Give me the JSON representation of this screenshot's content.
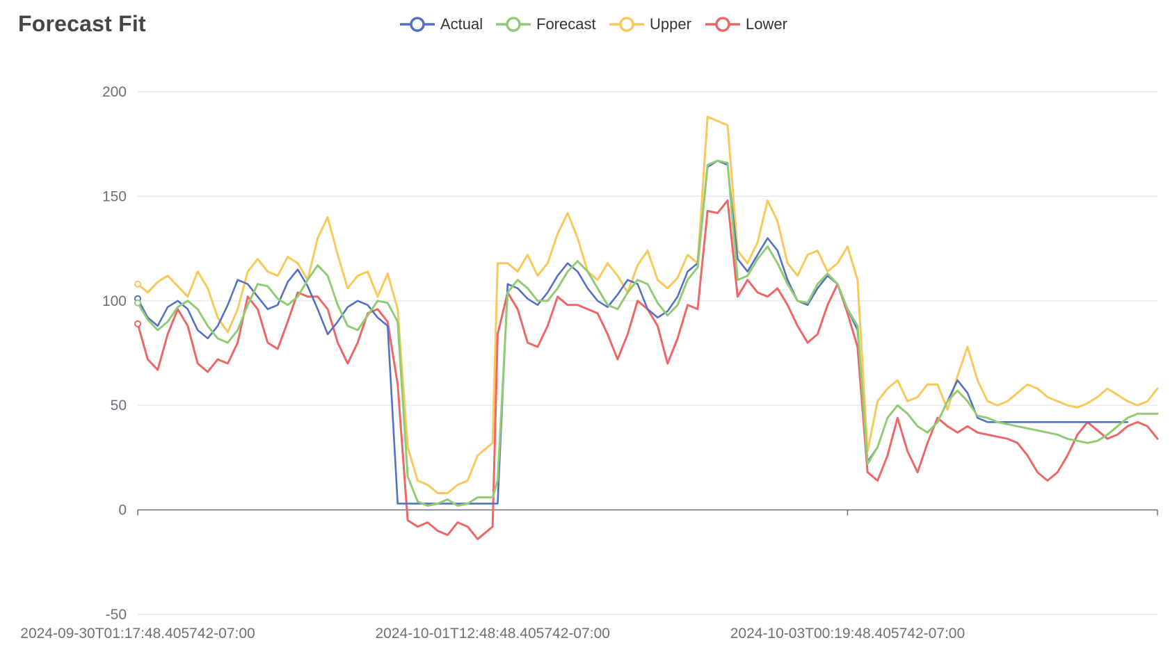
{
  "chart_data": {
    "type": "line",
    "title": "Forecast Fit",
    "legend": {
      "position": "top-center",
      "items": [
        "Actual",
        "Forecast",
        "Upper",
        "Lower"
      ]
    },
    "colors": {
      "Actual": "#5470c6",
      "Forecast": "#91cc75",
      "Upper": "#fac858",
      "Lower": "#ee6666",
      "grid": "#e0e6f1",
      "axis": "#6e7079"
    },
    "ylim": [
      -50,
      200
    ],
    "y_ticks": [
      "200",
      "150",
      "100",
      "50",
      "0",
      "-50"
    ],
    "x_tick_labels": [
      "2024-09-30T01:17:48.405742-07:00",
      "2024-10-01T12:48:48.405742-07:00",
      "2024-10-03T00:19:48.405742-07:00"
    ],
    "x_tick_hours": [
      0,
      35.5,
      71
    ],
    "x_range_hours": [
      0,
      102
    ],
    "grid": true,
    "series": [
      {
        "name": "Actual",
        "x": [
          0,
          1,
          2,
          3,
          4,
          5,
          6,
          7,
          8,
          9,
          10,
          11,
          12,
          13,
          14,
          15,
          16,
          17,
          18,
          19,
          20,
          21,
          22,
          23,
          24,
          25,
          26,
          27,
          28,
          29,
          30,
          31,
          32,
          33,
          34,
          35,
          35.5,
          36,
          37,
          38,
          39,
          40,
          41,
          42,
          43,
          44,
          45,
          46,
          47,
          48,
          49,
          50,
          51,
          52,
          53,
          54,
          55,
          56,
          57,
          58,
          59,
          60,
          61,
          62,
          63,
          64,
          65,
          66,
          67,
          68,
          69,
          70,
          71,
          72,
          73,
          74,
          75,
          76,
          77,
          78,
          79,
          80,
          81,
          82,
          83,
          84,
          85,
          86,
          87,
          88,
          89,
          90,
          91,
          92,
          93,
          94,
          95,
          96,
          97,
          98,
          99
        ],
        "y": [
          101,
          92,
          88,
          97,
          100,
          96,
          86,
          82,
          88,
          98,
          110,
          108,
          102,
          96,
          98,
          109,
          115,
          107,
          96,
          84,
          90,
          97,
          100,
          98,
          92,
          88,
          3,
          3,
          3,
          3,
          3,
          3,
          3,
          3,
          3,
          3,
          3,
          3,
          108,
          106,
          101,
          98,
          104,
          112,
          118,
          114,
          106,
          100,
          97,
          103,
          110,
          108,
          96,
          92,
          95,
          102,
          114,
          118,
          164,
          167,
          165,
          120,
          114,
          122,
          130,
          124,
          110,
          100,
          98,
          106,
          112,
          108,
          96,
          86,
          23,
          30,
          44,
          50,
          46,
          40,
          37,
          42,
          52,
          62,
          56,
          44,
          42,
          42,
          42,
          42,
          42,
          42,
          42,
          42,
          42,
          42,
          42,
          42,
          42,
          42,
          42
        ]
      },
      {
        "name": "Forecast",
        "x": [
          0,
          1,
          2,
          3,
          4,
          5,
          6,
          7,
          8,
          9,
          10,
          11,
          12,
          13,
          14,
          15,
          16,
          17,
          18,
          19,
          20,
          21,
          22,
          23,
          24,
          25,
          26,
          27,
          28,
          29,
          30,
          31,
          32,
          33,
          34,
          35,
          35.5,
          36,
          37,
          38,
          39,
          40,
          41,
          42,
          43,
          44,
          45,
          46,
          47,
          48,
          49,
          50,
          51,
          52,
          53,
          54,
          55,
          56,
          57,
          58,
          59,
          60,
          61,
          62,
          63,
          64,
          65,
          66,
          67,
          68,
          69,
          70,
          71,
          72,
          73,
          74,
          75,
          76,
          77,
          78,
          79,
          80,
          81,
          82,
          83,
          84,
          85,
          86,
          87,
          88,
          89,
          90,
          91,
          92,
          93,
          94,
          95,
          96,
          97,
          98,
          99,
          100,
          101,
          102
        ],
        "y": [
          99,
          91,
          86,
          90,
          97,
          100,
          96,
          88,
          82,
          80,
          86,
          98,
          108,
          107,
          101,
          98,
          102,
          110,
          117,
          112,
          98,
          88,
          86,
          93,
          100,
          99,
          90,
          16,
          4,
          2,
          3,
          5,
          2,
          3,
          6,
          6,
          6,
          14,
          104,
          110,
          106,
          100,
          100,
          106,
          114,
          119,
          114,
          106,
          98,
          96,
          104,
          110,
          108,
          99,
          93,
          98,
          110,
          116,
          165,
          167,
          166,
          110,
          112,
          120,
          126,
          118,
          108,
          100,
          99,
          108,
          113,
          108,
          96,
          88,
          22,
          30,
          44,
          50,
          46,
          40,
          37,
          42,
          52,
          57,
          52,
          45,
          44,
          42,
          41,
          40,
          39,
          38,
          37,
          36,
          34,
          33,
          32,
          33,
          36,
          40,
          44,
          46,
          46,
          46
        ]
      },
      {
        "name": "Upper",
        "x": [
          0,
          1,
          2,
          3,
          4,
          5,
          6,
          7,
          8,
          9,
          10,
          11,
          12,
          13,
          14,
          15,
          16,
          17,
          18,
          19,
          20,
          21,
          22,
          23,
          24,
          25,
          26,
          27,
          28,
          29,
          30,
          31,
          32,
          33,
          34,
          35,
          35.5,
          36,
          37,
          38,
          39,
          40,
          41,
          42,
          43,
          44,
          45,
          46,
          47,
          48,
          49,
          50,
          51,
          52,
          53,
          54,
          55,
          56,
          57,
          58,
          59,
          60,
          61,
          62,
          63,
          64,
          65,
          66,
          67,
          68,
          69,
          70,
          71,
          72,
          73,
          74,
          75,
          76,
          77,
          78,
          79,
          80,
          81,
          82,
          83,
          84,
          85,
          86,
          87,
          88,
          89,
          90,
          91,
          92,
          93,
          94,
          95,
          96,
          97,
          98,
          99,
          100,
          101,
          102
        ],
        "y": [
          108,
          104,
          109,
          112,
          107,
          102,
          114,
          106,
          92,
          85,
          96,
          114,
          120,
          114,
          112,
          121,
          118,
          110,
          130,
          140,
          122,
          106,
          112,
          114,
          102,
          113,
          96,
          30,
          14,
          12,
          8,
          8,
          12,
          14,
          26,
          30,
          32,
          118,
          118,
          114,
          122,
          112,
          118,
          132,
          142,
          130,
          114,
          110,
          118,
          112,
          104,
          117,
          124,
          110,
          106,
          111,
          122,
          118,
          188,
          186,
          184,
          124,
          118,
          128,
          148,
          138,
          118,
          112,
          122,
          124,
          114,
          118,
          126,
          110,
          28,
          52,
          58,
          62,
          52,
          54,
          60,
          60,
          48,
          64,
          78,
          62,
          52,
          50,
          52,
          56,
          60,
          58,
          54,
          52,
          50,
          49,
          51,
          54,
          58,
          55,
          52,
          50,
          52,
          58
        ]
      },
      {
        "name": "Lower",
        "x": [
          0,
          1,
          2,
          3,
          4,
          5,
          6,
          7,
          8,
          9,
          10,
          11,
          12,
          13,
          14,
          15,
          16,
          17,
          18,
          19,
          20,
          21,
          22,
          23,
          24,
          25,
          26,
          27,
          28,
          29,
          30,
          31,
          32,
          33,
          34,
          35,
          35.5,
          36,
          37,
          38,
          39,
          40,
          41,
          42,
          43,
          44,
          45,
          46,
          47,
          48,
          49,
          50,
          51,
          52,
          53,
          54,
          55,
          56,
          57,
          58,
          59,
          60,
          61,
          62,
          63,
          64,
          65,
          66,
          67,
          68,
          69,
          70,
          71,
          72,
          73,
          74,
          75,
          76,
          77,
          78,
          79,
          80,
          81,
          82,
          83,
          84,
          85,
          86,
          87,
          88,
          89,
          90,
          91,
          92,
          93,
          94,
          95,
          96,
          97,
          98,
          99,
          100,
          101,
          102
        ],
        "y": [
          89,
          72,
          67,
          84,
          96,
          88,
          70,
          66,
          72,
          70,
          80,
          102,
          96,
          80,
          77,
          90,
          104,
          102,
          102,
          96,
          80,
          70,
          80,
          94,
          96,
          90,
          60,
          -5,
          -8,
          -6,
          -10,
          -12,
          -6,
          -8,
          -14,
          -10,
          -8,
          84,
          104,
          96,
          80,
          78,
          88,
          102,
          98,
          98,
          96,
          94,
          84,
          72,
          84,
          100,
          96,
          88,
          70,
          82,
          98,
          96,
          143,
          142,
          148,
          102,
          110,
          104,
          102,
          106,
          98,
          88,
          80,
          84,
          98,
          108,
          94,
          78,
          18,
          14,
          26,
          44,
          28,
          18,
          32,
          44,
          40,
          37,
          40,
          37,
          36,
          35,
          34,
          32,
          26,
          18,
          14,
          18,
          26,
          36,
          42,
          38,
          34,
          36,
          40,
          42,
          40,
          34
        ]
      }
    ]
  }
}
